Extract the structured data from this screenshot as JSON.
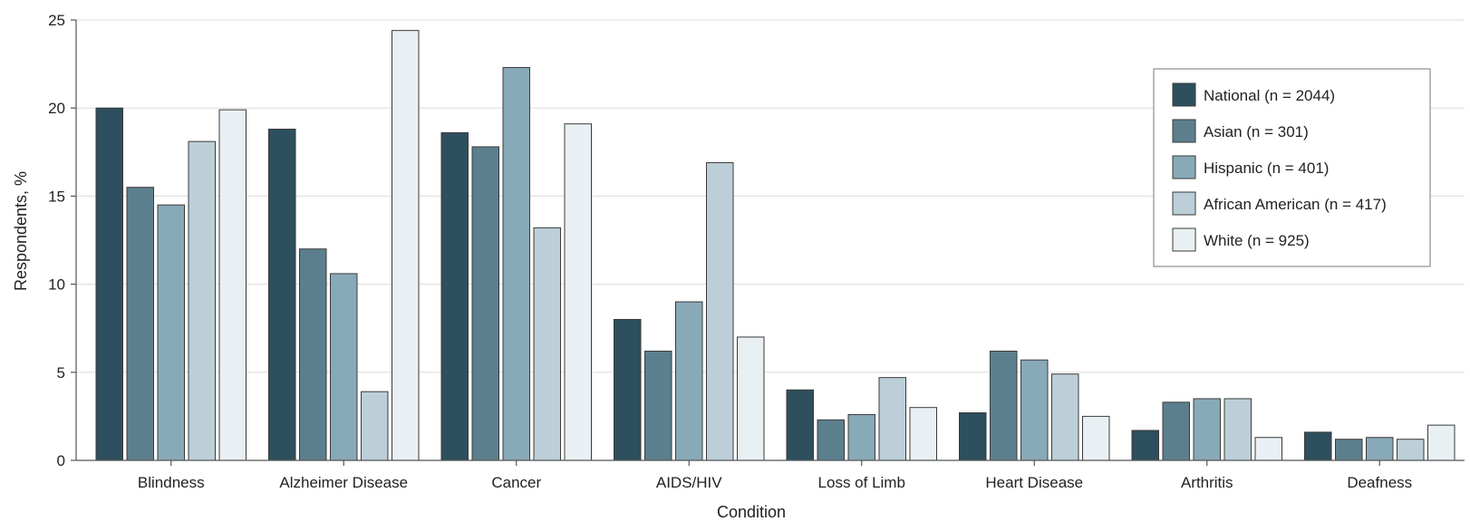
{
  "chart_data": {
    "type": "bar",
    "title": "",
    "xlabel": "Condition",
    "ylabel": "Respondents, %",
    "ylim": [
      0,
      25
    ],
    "yticks": [
      0,
      5,
      10,
      15,
      20,
      25
    ],
    "grid": true,
    "legend_position": "top-right",
    "categories": [
      "Blindness",
      "Alzheimer Disease",
      "Cancer",
      "AIDS/HIV",
      "Loss of Limb",
      "Heart Disease",
      "Arthritis",
      "Deafness"
    ],
    "series": [
      {
        "name": "National (n = 2044)",
        "color": "#2d4f5e",
        "values": [
          20.0,
          18.8,
          18.6,
          8.0,
          4.0,
          2.7,
          1.7,
          1.6
        ]
      },
      {
        "name": "Asian (n = 301)",
        "color": "#5c7f8e",
        "values": [
          15.5,
          12.0,
          17.8,
          6.2,
          2.3,
          6.2,
          3.3,
          1.2
        ]
      },
      {
        "name": "Hispanic (n = 401)",
        "color": "#88a9b8",
        "values": [
          14.5,
          10.6,
          22.3,
          9.0,
          2.6,
          5.7,
          3.5,
          1.3
        ]
      },
      {
        "name": "African American (n = 417)",
        "color": "#bccfd8",
        "values": [
          18.1,
          3.9,
          13.2,
          16.9,
          4.7,
          4.9,
          3.5,
          1.2
        ]
      },
      {
        "name": "White (n = 925)",
        "color": "#e9f0f3",
        "values": [
          19.9,
          24.4,
          19.1,
          7.0,
          3.0,
          2.5,
          1.3,
          2.0
        ]
      }
    ]
  }
}
